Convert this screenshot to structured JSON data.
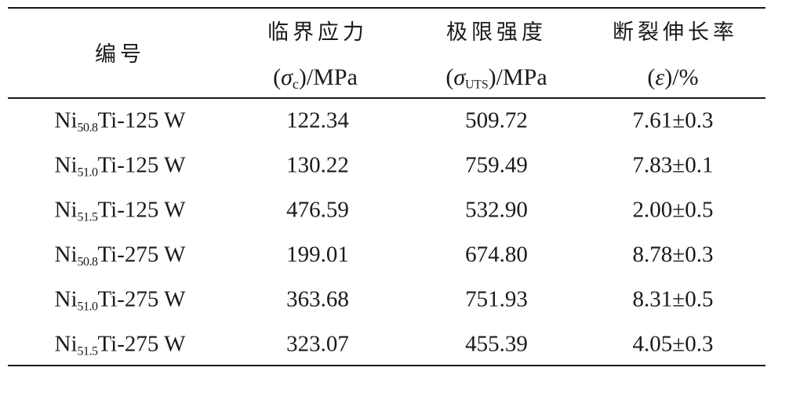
{
  "table": {
    "headers": [
      {
        "title": "编号"
      },
      {
        "title": "临界应力",
        "symbol": "σ",
        "sub": "c",
        "unit": ")/MPa"
      },
      {
        "title": "极限强度",
        "symbol": "σ",
        "sub": "UTS",
        "unit": ")/MPa"
      },
      {
        "title": "断裂伸长率",
        "symbol": "ε",
        "unit": ")/%"
      }
    ],
    "rows": [
      {
        "base": "Ni",
        "sub": "50.8",
        "rest": "Ti-125 W",
        "critical_stress": "122.34",
        "ultimate_strength": "509.72",
        "elongation": "7.61±0.3"
      },
      {
        "base": "Ni",
        "sub": "51.0",
        "rest": "Ti-125 W",
        "critical_stress": "130.22",
        "ultimate_strength": "759.49",
        "elongation": "7.83±0.1"
      },
      {
        "base": "Ni",
        "sub": "51.5",
        "rest": "Ti-125 W",
        "critical_stress": "476.59",
        "ultimate_strength": "532.90",
        "elongation": "2.00±0.5"
      },
      {
        "base": "Ni",
        "sub": "50.8",
        "rest": "Ti-275 W",
        "critical_stress": "199.01",
        "ultimate_strength": "674.80",
        "elongation": "8.78±0.3"
      },
      {
        "base": "Ni",
        "sub": "51.0",
        "rest": "Ti-275 W",
        "critical_stress": "363.68",
        "ultimate_strength": "751.93",
        "elongation": "8.31±0.5"
      },
      {
        "base": "Ni",
        "sub": "51.5",
        "rest": "Ti-275 W",
        "critical_stress": "323.07",
        "ultimate_strength": "455.39",
        "elongation": "4.05±0.3"
      }
    ]
  }
}
